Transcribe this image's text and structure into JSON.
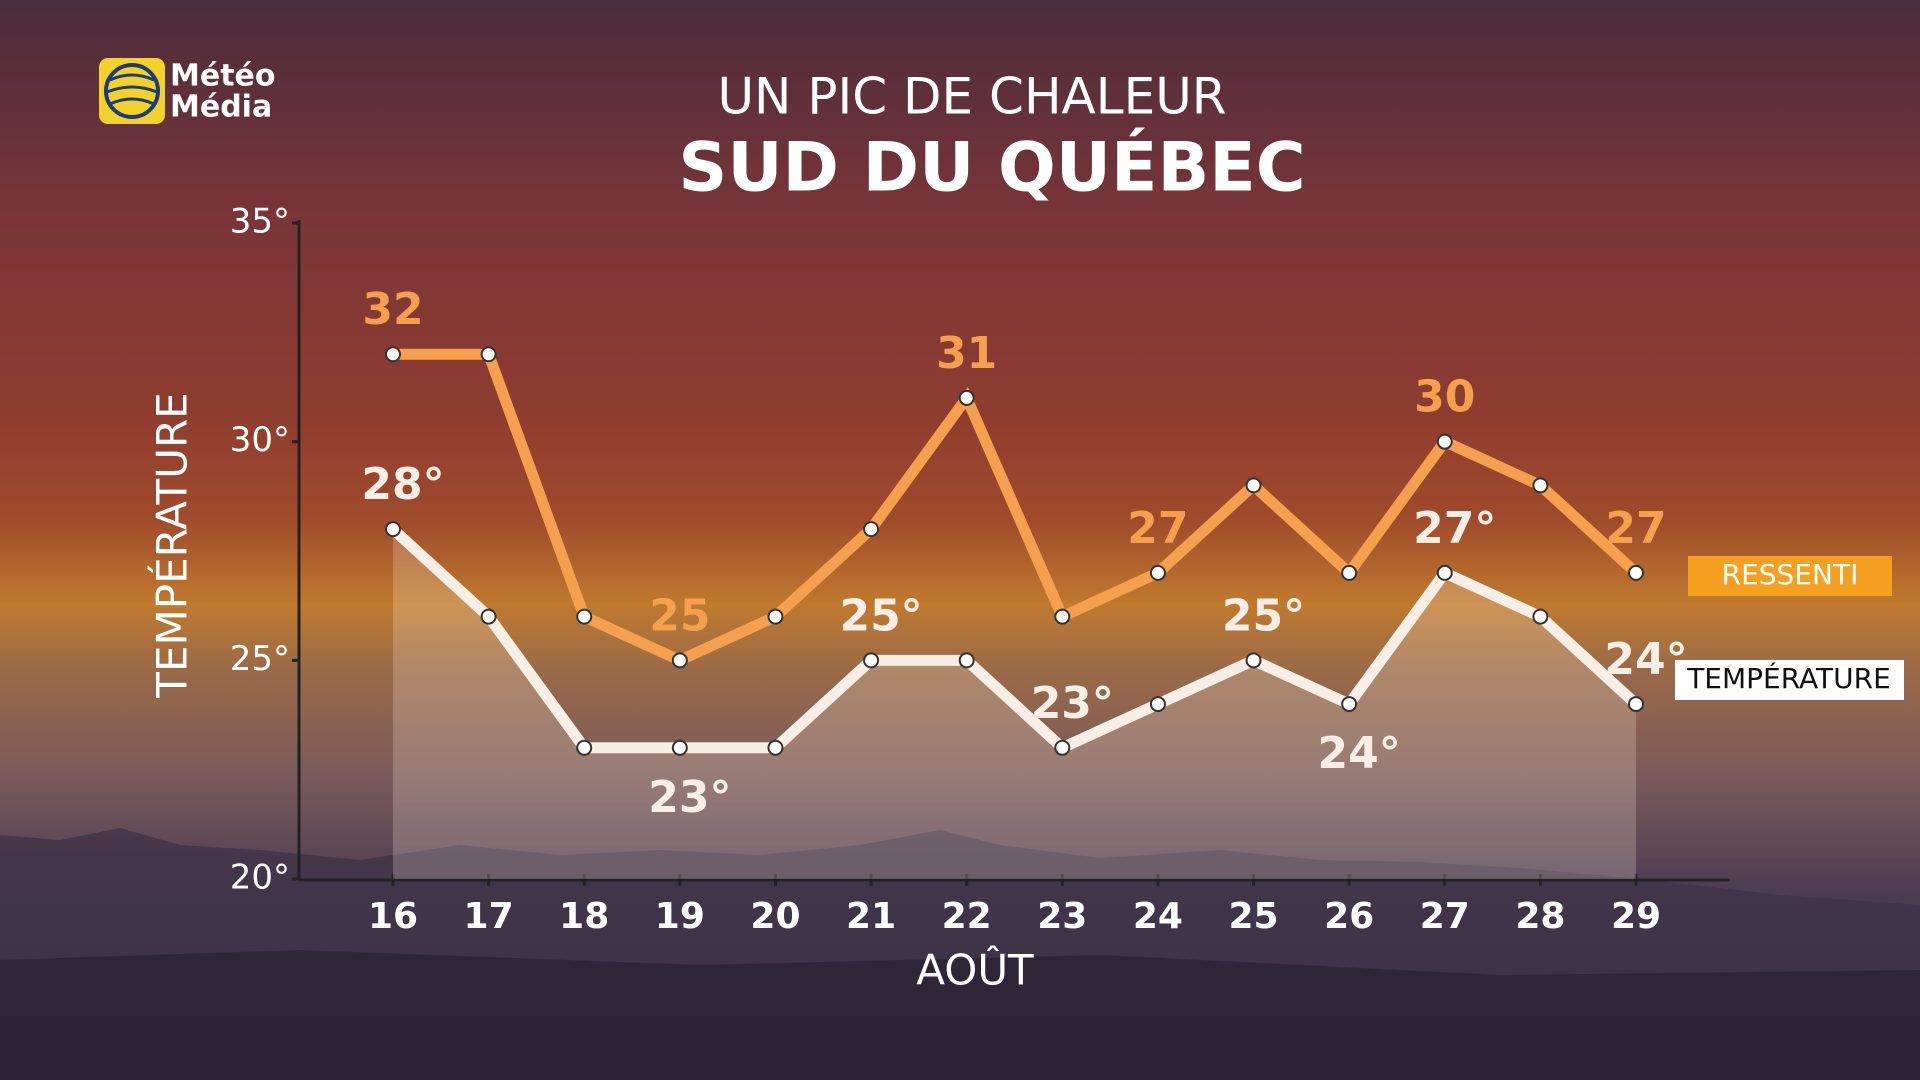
{
  "brand": {
    "line1": "Météo",
    "line2": "Média"
  },
  "chart_data": {
    "type": "line",
    "title": "UN PIC DE CHALEUR",
    "subtitle": "SUD DU QUÉBEC",
    "x_label": "AOÛT",
    "y_label": "TEMPÉRATURE",
    "categories": [
      "16",
      "17",
      "18",
      "19",
      "20",
      "21",
      "22",
      "23",
      "24",
      "25",
      "26",
      "27",
      "28",
      "29"
    ],
    "series": [
      {
        "name": "RESSENTI",
        "color": "#f5a04e",
        "values": [
          32,
          32,
          26,
          25,
          26,
          28,
          31,
          26,
          27,
          29,
          27,
          30,
          29,
          27
        ],
        "value_labels": [
          "32",
          null,
          null,
          "25",
          null,
          null,
          "31",
          null,
          "27",
          null,
          null,
          "30",
          null,
          "27"
        ]
      },
      {
        "name": "TEMPÉRATURE",
        "color": "#f7eee6",
        "values": [
          28,
          26,
          23,
          23,
          23,
          25,
          25,
          23,
          24,
          25,
          24,
          27,
          26,
          24
        ],
        "value_labels": [
          "28°",
          null,
          null,
          "23°",
          null,
          "25°",
          null,
          "23°",
          null,
          "25°",
          "24°",
          "27°",
          null,
          "24°"
        ]
      }
    ],
    "ylim": [
      20,
      35
    ],
    "yticks": [
      {
        "value": 20,
        "label": "20°"
      },
      {
        "value": 25,
        "label": "25°"
      },
      {
        "value": 30,
        "label": "30°"
      },
      {
        "value": 35,
        "label": "35°"
      }
    ],
    "grid": false
  }
}
